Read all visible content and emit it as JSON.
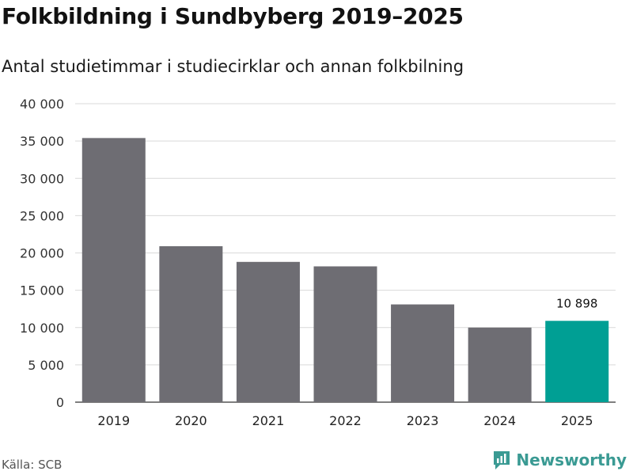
{
  "title": "Folkbildning i Sundbyberg 2019–2025",
  "subtitle": "Antal studietimmar i studiecirklar och annan folkbilning",
  "source": "Källa: SCB",
  "brand": "Newsworthy",
  "colors": {
    "bar": "#6e6d73",
    "highlight": "#009f94",
    "grid": "#d9d9d9",
    "brand": "#3a9a93"
  },
  "chart_data": {
    "type": "bar",
    "title": "Folkbildning i Sundbyberg 2019–2025",
    "subtitle": "Antal studietimmar i studiecirklar och annan folkbilning",
    "xlabel": "",
    "ylabel": "",
    "categories": [
      "2019",
      "2020",
      "2021",
      "2022",
      "2023",
      "2024",
      "2025"
    ],
    "values": [
      35400,
      20900,
      18800,
      18200,
      13100,
      10000,
      10898
    ],
    "highlight_index": 6,
    "data_labels": [
      {
        "index": 6,
        "text": "10 898"
      }
    ],
    "ylim": [
      0,
      40000
    ],
    "yticks": [
      0,
      5000,
      10000,
      15000,
      20000,
      25000,
      30000,
      35000,
      40000
    ],
    "ytick_labels": [
      "0",
      "5 000",
      "10 000",
      "15 000",
      "20 000",
      "25 000",
      "30 000",
      "35 000",
      "40 000"
    ],
    "grid": true
  }
}
